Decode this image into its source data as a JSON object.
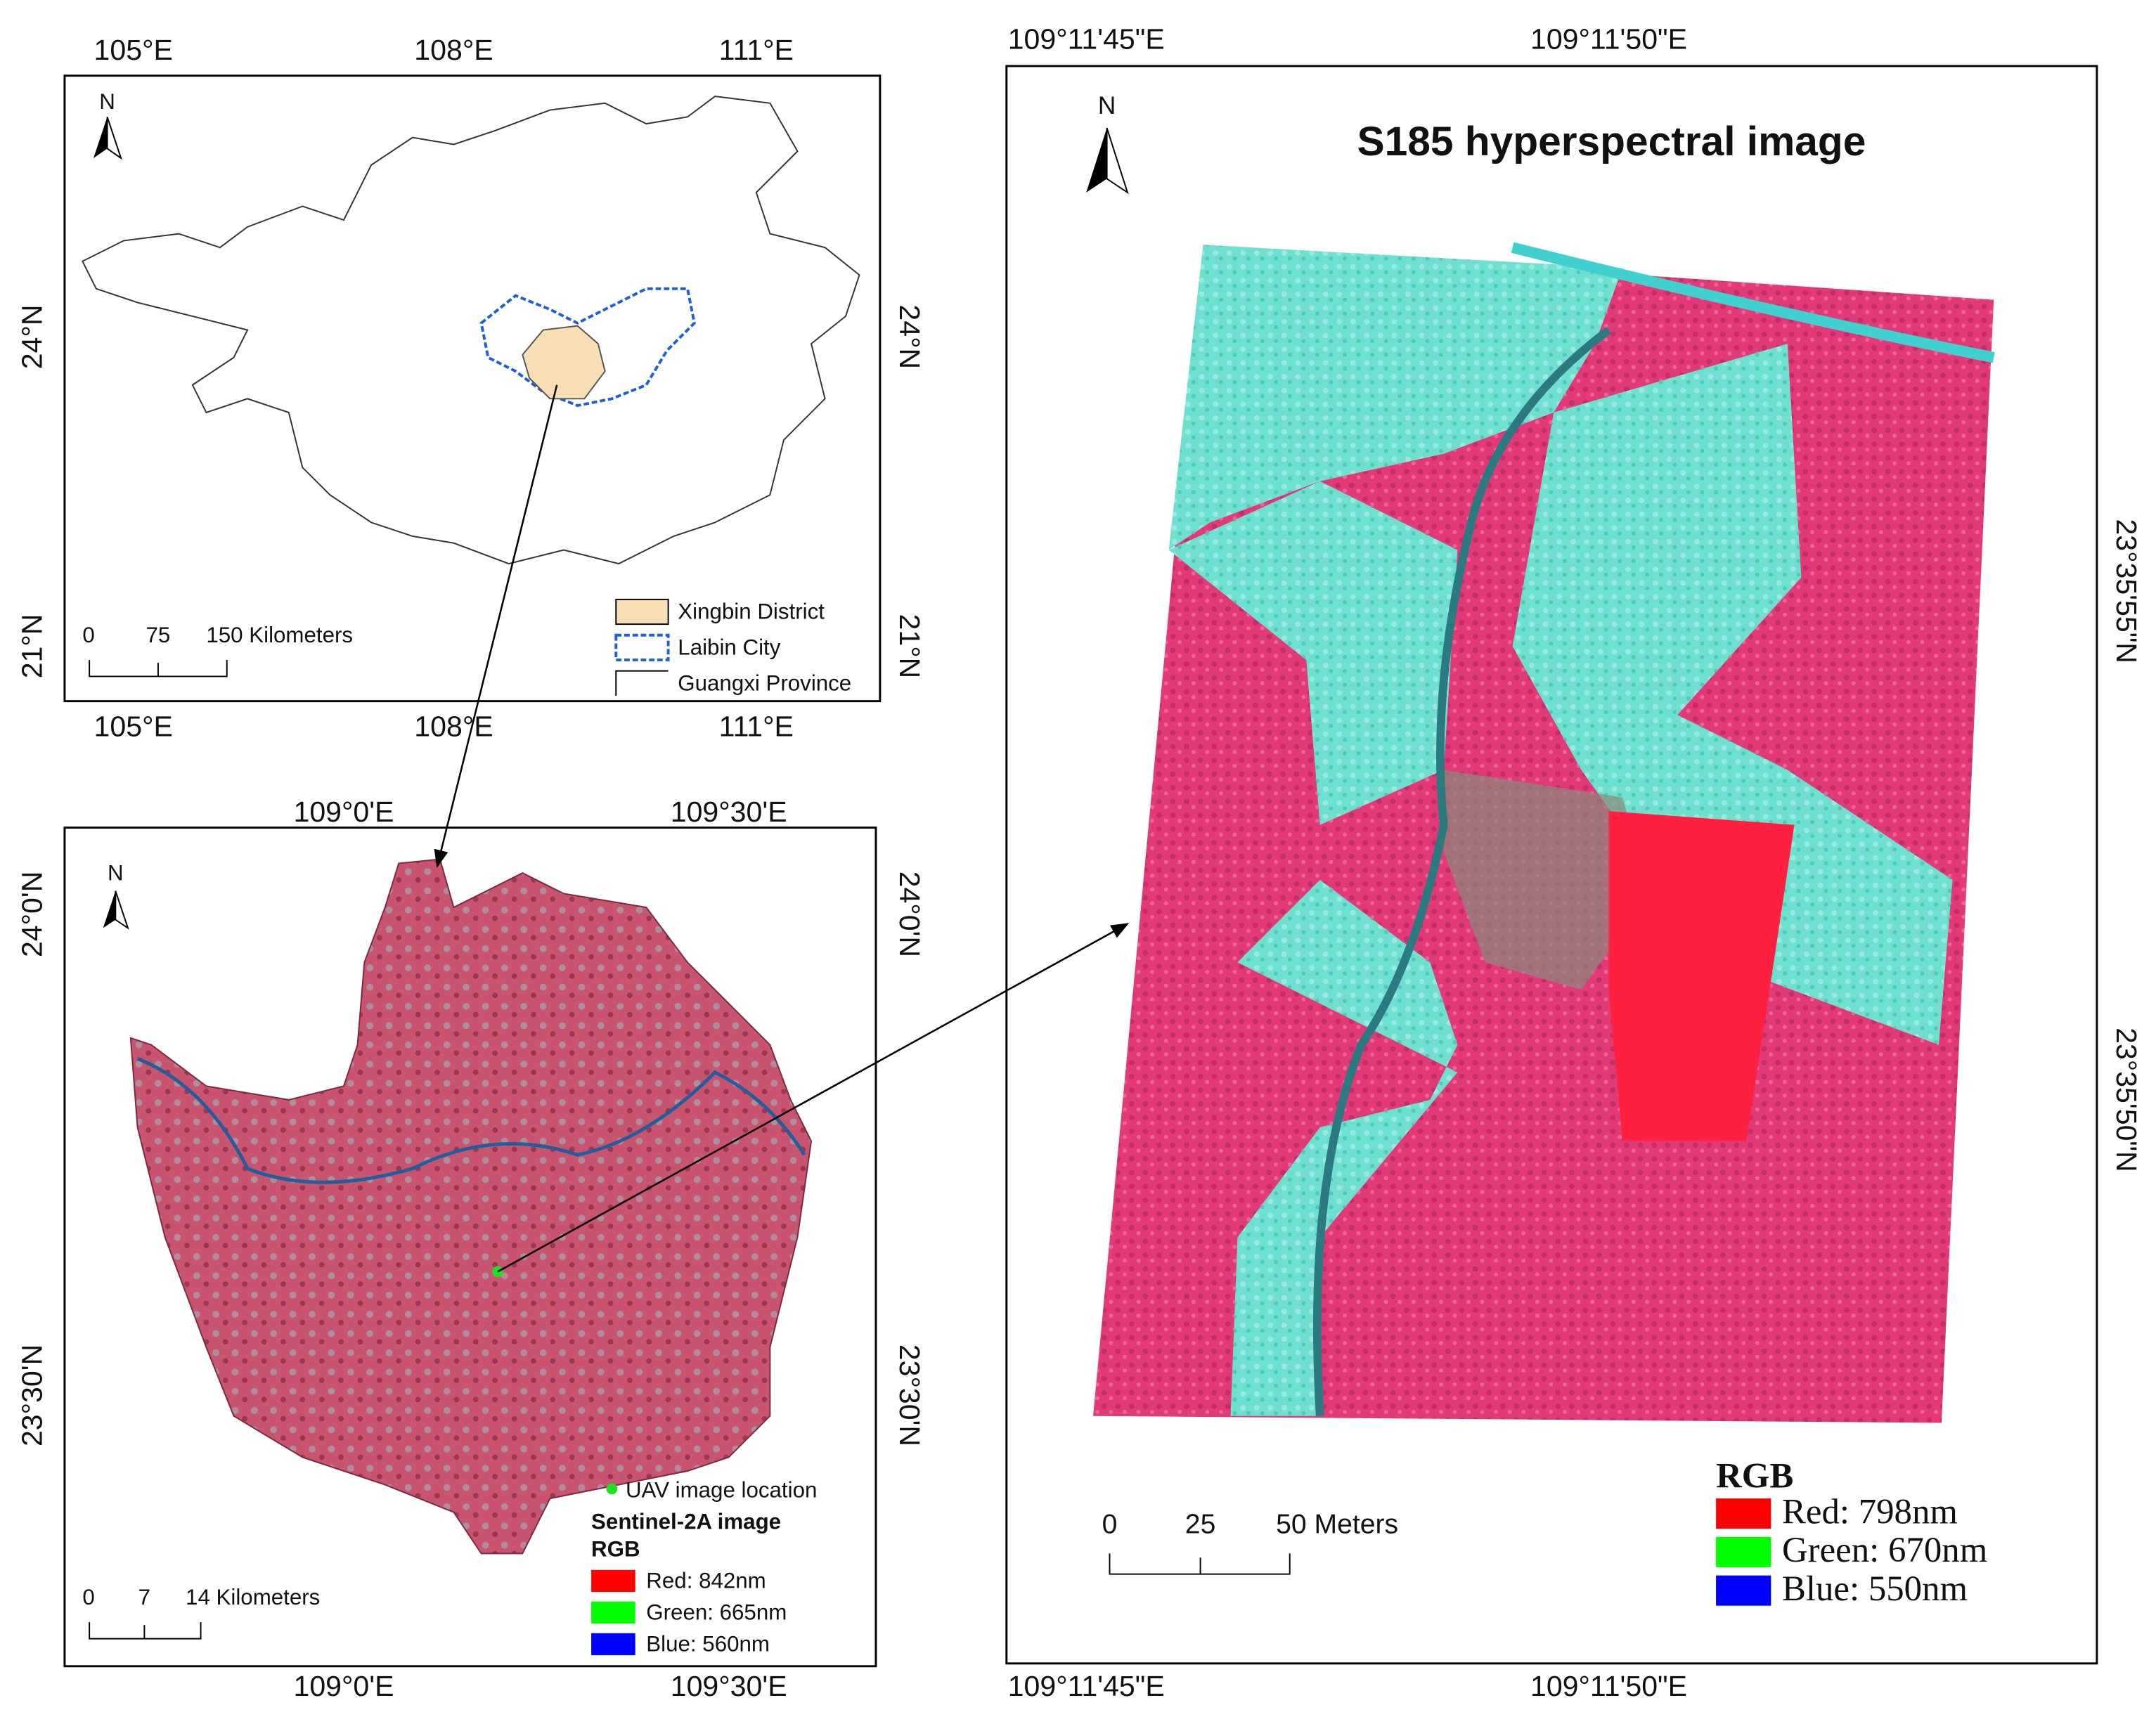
{
  "province_map": {
    "north": "N",
    "lon_labels": [
      "105°E",
      "108°E",
      "111°E"
    ],
    "lat_labels": [
      "24°N",
      "21°N"
    ],
    "scale_labels": [
      "0",
      "75",
      "150 Kilometers"
    ],
    "legend": [
      "Xingbin District",
      "Laibin City",
      "Guangxi Province"
    ]
  },
  "sentinel_map": {
    "north": "N",
    "lon_labels": [
      "109°0'E",
      "109°30'E"
    ],
    "lat_labels": [
      "24°0'N",
      "23°30'N"
    ],
    "scale_labels": [
      "0",
      "7",
      "14 Kilometers"
    ],
    "legend": {
      "point": "UAV image location",
      "title": "Sentinel-2A image",
      "subtitle": "RGB",
      "bands": [
        "Red: 842nm",
        "Green: 665nm",
        "Blue: 560nm"
      ]
    }
  },
  "uav_map": {
    "title": "S185 hyperspectral image",
    "north": "N",
    "lon_labels": [
      "109°11'45\"E",
      "109°11'50\"E"
    ],
    "lat_labels": [
      "23°35'55\"N",
      "23°35'50\"N"
    ],
    "scale_labels": [
      "0",
      "25",
      "50 Meters"
    ],
    "legend": {
      "title": "RGB",
      "bands": [
        "Red: 798nm",
        "Green: 670nm",
        "Blue: 550nm"
      ]
    }
  }
}
